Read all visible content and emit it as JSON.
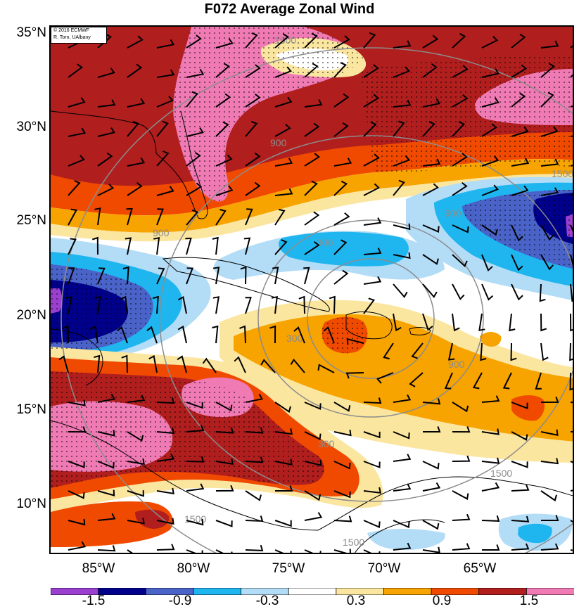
{
  "title": "F072 Average Zonal Wind",
  "credit": {
    "line1": "© 2016 ECMWF",
    "line2": "R. Torn, UAlbany"
  },
  "lat_labels": [
    "35°N",
    "30°N",
    "25°N",
    "20°N",
    "15°N",
    "10°N"
  ],
  "lon_labels": [
    "85°W",
    "80°W",
    "75°W",
    "70°W",
    "65°W"
  ],
  "colorbar": {
    "colors": [
      "#9b3fd1",
      "#00008b",
      "#4a63c9",
      "#1fb6f0",
      "#b3dcf7",
      "#ffffff",
      "#fbe6a0",
      "#f7a300",
      "#f04a00",
      "#b01e1e",
      "#f07ab4"
    ],
    "labels": [
      "-1.5",
      "-0.9",
      "-0.3",
      "0.3",
      "0.9",
      "1.5"
    ]
  },
  "contour_labels": [
    "1500",
    "900",
    "300",
    "300",
    "300",
    "900",
    "900",
    "900",
    "1500",
    "1500",
    "1500",
    "1500"
  ],
  "colors": {
    "contour": "#8c8c8c",
    "coast": "#000000"
  }
}
